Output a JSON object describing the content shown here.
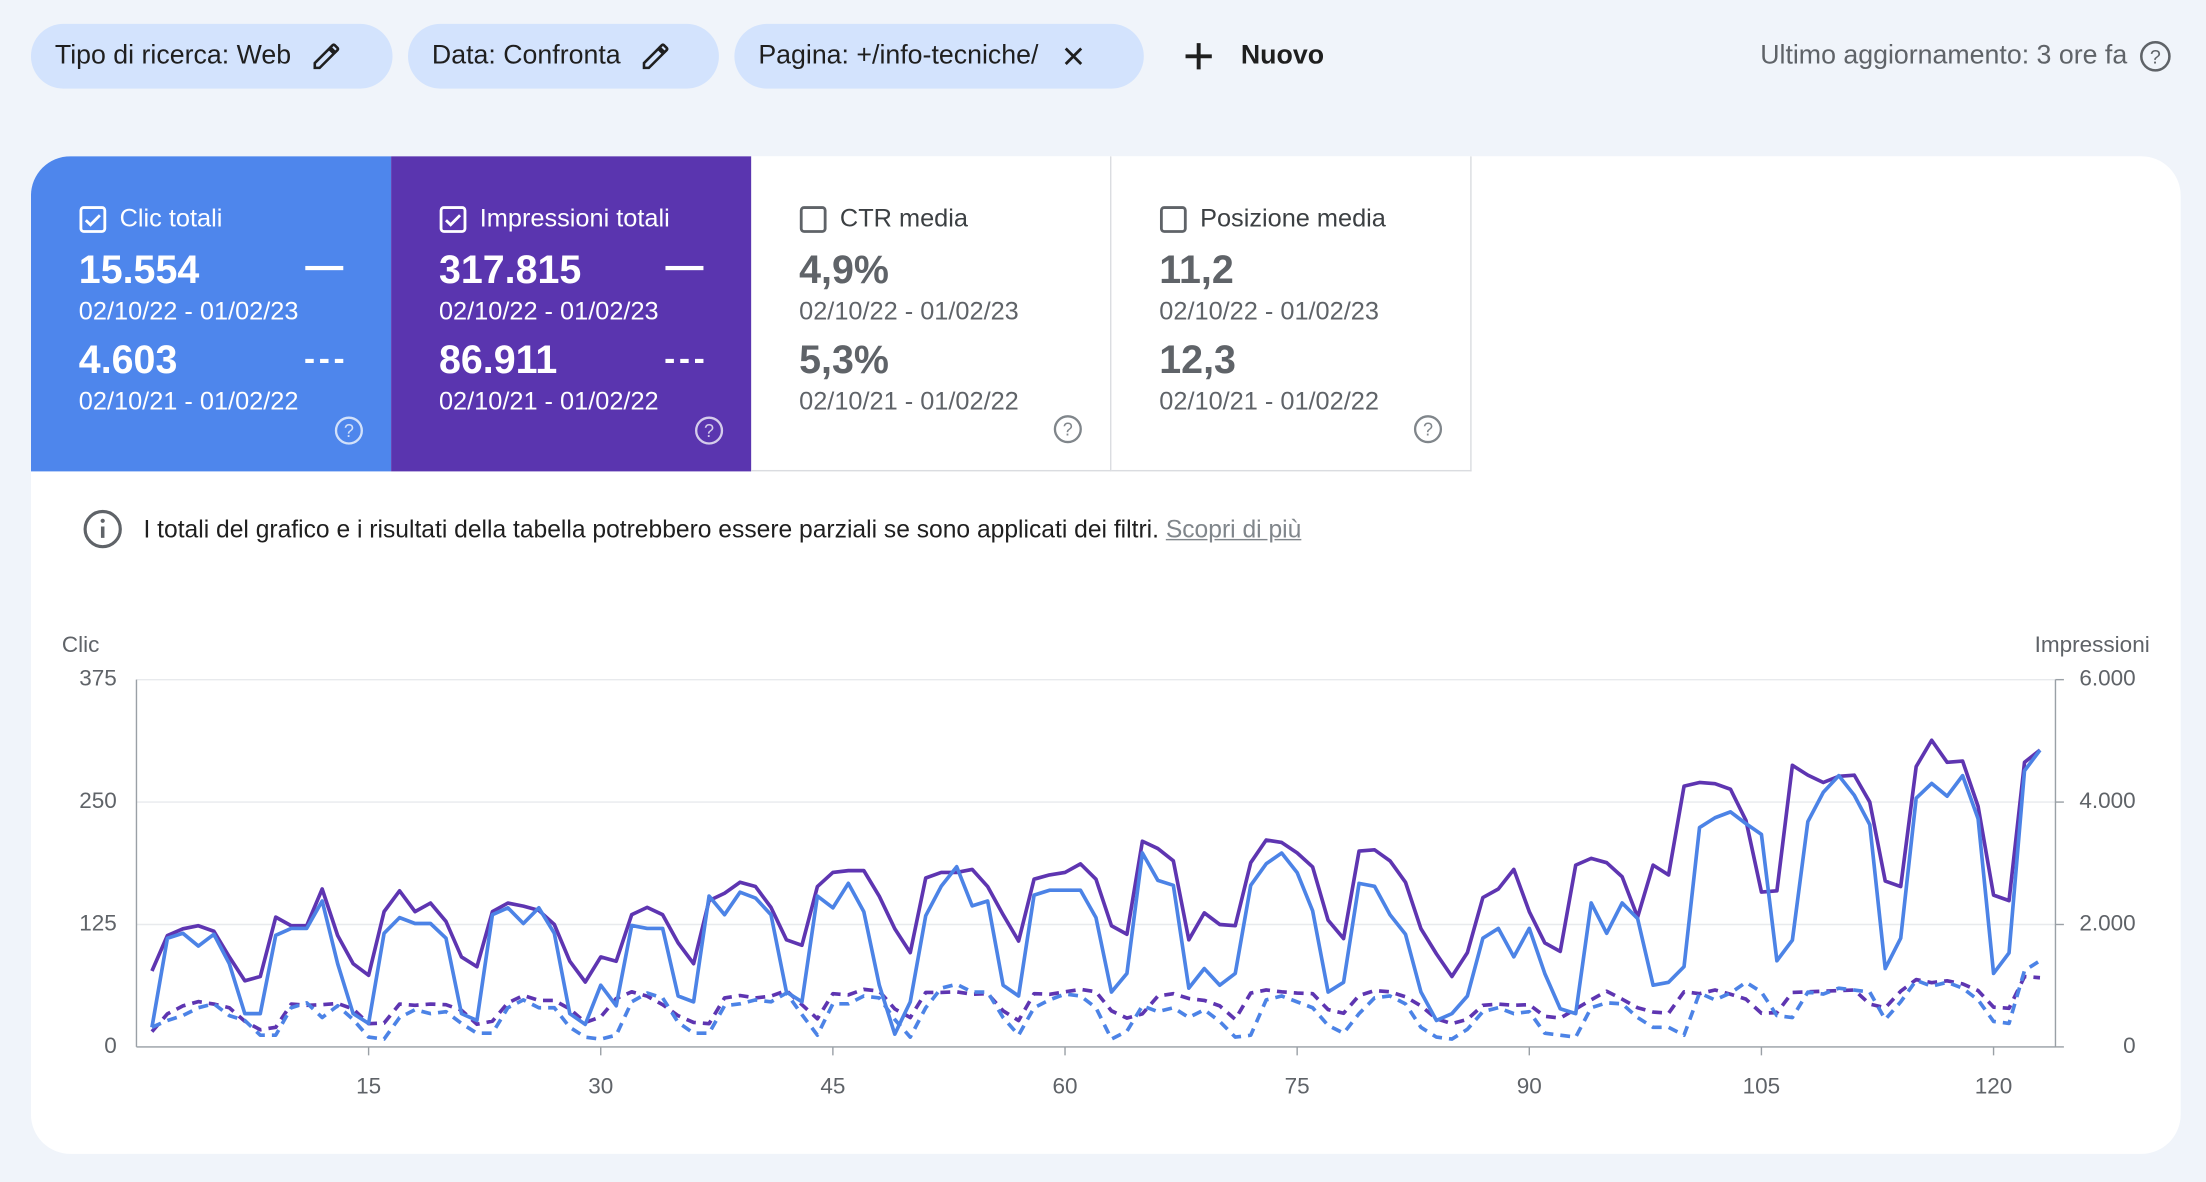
{
  "filters": [
    "Tipo di ricerca: Web",
    "Data: Confronta",
    "Pagina: +/info-tecniche/"
  ],
  "new_button": "Nuovo",
  "last_update": "Ultimo aggiornamento: 3 ore fa",
  "cards": [
    {
      "label": "Clic totali",
      "checked": true,
      "color": "#4e86ec",
      "current": {
        "value": "15.554",
        "range": "02/10/22 - 01/02/23"
      },
      "previous": {
        "value": "4.603",
        "range": "02/10/21 - 01/02/22"
      }
    },
    {
      "label": "Impressioni totali",
      "checked": true,
      "color": "#5a35af",
      "current": {
        "value": "317.815",
        "range": "02/10/22 - 01/02/23"
      },
      "previous": {
        "value": "86.911",
        "range": "02/10/21 - 01/02/22"
      }
    },
    {
      "label": "CTR media",
      "checked": false,
      "color": "#ffffff",
      "current": {
        "value": "4,9%",
        "range": "02/10/22 - 01/02/23"
      },
      "previous": {
        "value": "5,3%",
        "range": "02/10/21 - 01/02/22"
      }
    },
    {
      "label": "Posizione media",
      "checked": false,
      "color": "#ffffff",
      "current": {
        "value": "11,2",
        "range": "02/10/22 - 01/02/23"
      },
      "previous": {
        "value": "12,3",
        "range": "02/10/21 - 01/02/22"
      }
    }
  ],
  "info": {
    "text": "I totali del grafico e i risultati della tabella potrebbero essere parziali se sono applicati dei filtri.",
    "link": "Scopri di più"
  },
  "chart_data": {
    "type": "line",
    "y_label": "Clic",
    "y2_label": "Impressioni",
    "x": [
      1,
      2,
      3,
      4,
      5,
      6,
      7,
      8,
      9,
      10,
      11,
      12,
      13,
      14,
      15,
      16,
      17,
      18,
      19,
      20,
      21,
      22,
      23,
      24,
      25,
      26,
      27,
      28,
      29,
      30,
      31,
      32,
      33,
      34,
      35,
      36,
      37,
      38,
      39,
      40,
      41,
      42,
      43,
      44,
      45,
      46,
      47,
      48,
      49,
      50,
      51,
      52,
      53,
      54,
      55,
      56,
      57,
      58,
      59,
      60,
      61,
      62,
      63,
      64,
      65,
      66,
      67,
      68,
      69,
      70,
      71,
      72,
      73,
      74,
      75,
      76,
      77,
      78,
      79,
      80,
      81,
      82,
      83,
      84,
      85,
      86,
      87,
      88,
      89,
      90,
      91,
      92,
      93,
      94,
      95,
      96,
      97,
      98,
      99,
      100,
      101,
      102,
      103,
      104,
      105,
      106,
      107,
      108,
      109,
      110,
      111,
      112,
      113,
      114,
      115,
      116,
      117,
      118,
      119,
      120,
      121,
      122,
      123
    ],
    "xlim": [
      0,
      124
    ],
    "xticks": [
      15,
      30,
      45,
      60,
      75,
      90,
      105,
      120
    ],
    "ylim": [
      0,
      375
    ],
    "yticks": [
      0,
      125,
      250,
      375
    ],
    "y2lim": [
      0,
      6000
    ],
    "y2ticks": [
      0,
      {
        "value": 2000,
        "label": "2.000"
      },
      {
        "value": 4000,
        "label": "4.000"
      },
      {
        "value": 6000,
        "label": "6.000"
      }
    ],
    "grid": true,
    "series": [
      {
        "color": "#5e35b1",
        "style": "dashed",
        "axis": "y2",
        "values": [
          250,
          540,
          670,
          740,
          700,
          640,
          420,
          280,
          320,
          700,
          680,
          690,
          710,
          620,
          380,
          390,
          700,
          680,
          700,
          690,
          600,
          370,
          420,
          720,
          840,
          760,
          760,
          620,
          400,
          490,
          790,
          900,
          830,
          690,
          510,
          400,
          380,
          800,
          840,
          800,
          830,
          920,
          690,
          460,
          870,
          850,
          940,
          910,
          620,
          480,
          890,
          890,
          900,
          860,
          870,
          590,
          430,
          870,
          860,
          900,
          940,
          900,
          590,
          470,
          540,
          830,
          870,
          790,
          760,
          670,
          450,
          880,
          930,
          900,
          880,
          870,
          610,
          550,
          840,
          920,
          900,
          820,
          670,
          460,
          380,
          450,
          680,
          700,
          680,
          690,
          500,
          470,
          620,
          770,
          910,
          780,
          640,
          570,
          550,
          900,
          870,
          930,
          860,
          780,
          550,
          560,
          890,
          900,
          910,
          920,
          930,
          700,
          640,
          910,
          1100,
          1050,
          1080,
          1030,
          920,
          650,
          630,
          1150,
          1130
        ]
      },
      {
        "color": "#4c83e6",
        "style": "dashed",
        "axis": "y",
        "values": [
          20,
          27,
          32,
          40,
          44,
          32,
          27,
          12,
          12,
          40,
          45,
          30,
          42,
          28,
          10,
          8,
          30,
          38,
          34,
          36,
          24,
          14,
          14,
          40,
          48,
          40,
          40,
          20,
          10,
          8,
          12,
          46,
          55,
          50,
          25,
          14,
          14,
          42,
          44,
          48,
          46,
          55,
          33,
          12,
          44,
          44,
          52,
          50,
          28,
          10,
          40,
          60,
          64,
          56,
          56,
          30,
          12,
          40,
          48,
          54,
          52,
          40,
          8,
          16,
          42,
          36,
          40,
          30,
          38,
          26,
          10,
          12,
          48,
          52,
          46,
          40,
          22,
          14,
          34,
          50,
          52,
          44,
          20,
          10,
          8,
          18,
          36,
          40,
          34,
          36,
          14,
          12,
          10,
          40,
          45,
          44,
          30,
          20,
          20,
          12,
          55,
          48,
          55,
          66,
          56,
          32,
          30,
          56,
          54,
          60,
          58,
          56,
          28,
          46,
          68,
          62,
          66,
          60,
          48,
          26,
          24,
          78,
          88
        ]
      },
      {
        "color": "#5e35b1",
        "style": "solid",
        "axis": "y2",
        "values": [
          1240,
          1820,
          1930,
          1980,
          1890,
          1470,
          1080,
          1150,
          2120,
          1980,
          1980,
          2580,
          1820,
          1360,
          1170,
          2210,
          2550,
          2210,
          2350,
          2050,
          1470,
          1310,
          2210,
          2350,
          2300,
          2230,
          2000,
          1400,
          1060,
          1470,
          1400,
          2160,
          2280,
          2160,
          1700,
          1360,
          2390,
          2510,
          2690,
          2620,
          2280,
          1750,
          1660,
          2620,
          2850,
          2880,
          2880,
          2460,
          1930,
          1540,
          2760,
          2850,
          2850,
          2900,
          2620,
          2160,
          1730,
          2740,
          2810,
          2850,
          2990,
          2740,
          1980,
          1840,
          3360,
          3240,
          3040,
          1750,
          2190,
          2000,
          1980,
          3010,
          3380,
          3340,
          3170,
          2940,
          2070,
          1770,
          3200,
          3220,
          3040,
          2690,
          1930,
          1520,
          1150,
          1540,
          2440,
          2580,
          2900,
          2210,
          1700,
          1560,
          2970,
          3080,
          3010,
          2780,
          2120,
          2970,
          2810,
          4260,
          4320,
          4300,
          4210,
          3700,
          2530,
          2550,
          4600,
          4440,
          4320,
          4420,
          4440,
          4000,
          2710,
          2620,
          4580,
          5010,
          4650,
          4670,
          3930,
          2480,
          2390,
          4650,
          4850
        ]
      },
      {
        "color": "#4c83e6",
        "style": "solid",
        "axis": "y",
        "values": [
          20,
          111,
          116,
          103,
          115,
          85,
          34,
          34,
          114,
          121,
          121,
          149,
          85,
          34,
          24,
          116,
          132,
          126,
          126,
          111,
          34,
          27,
          135,
          142,
          126,
          142,
          116,
          34,
          23,
          63,
          42,
          124,
          121,
          121,
          52,
          46,
          154,
          135,
          158,
          152,
          135,
          56,
          46,
          154,
          142,
          167,
          138,
          63,
          13,
          46,
          134,
          164,
          184,
          144,
          149,
          63,
          52,
          155,
          160,
          160,
          160,
          132,
          56,
          75,
          198,
          170,
          165,
          60,
          80,
          63,
          75,
          165,
          187,
          198,
          178,
          139,
          56,
          66,
          167,
          164,
          135,
          115,
          56,
          27,
          34,
          52,
          111,
          121,
          92,
          121,
          75,
          39,
          34,
          147,
          116,
          147,
          131,
          63,
          66,
          82,
          224,
          234,
          240,
          228,
          217,
          88,
          109,
          230,
          260,
          277,
          257,
          227,
          80,
          111,
          254,
          269,
          256,
          277,
          233,
          75,
          96,
          282,
          303
        ]
      }
    ]
  }
}
